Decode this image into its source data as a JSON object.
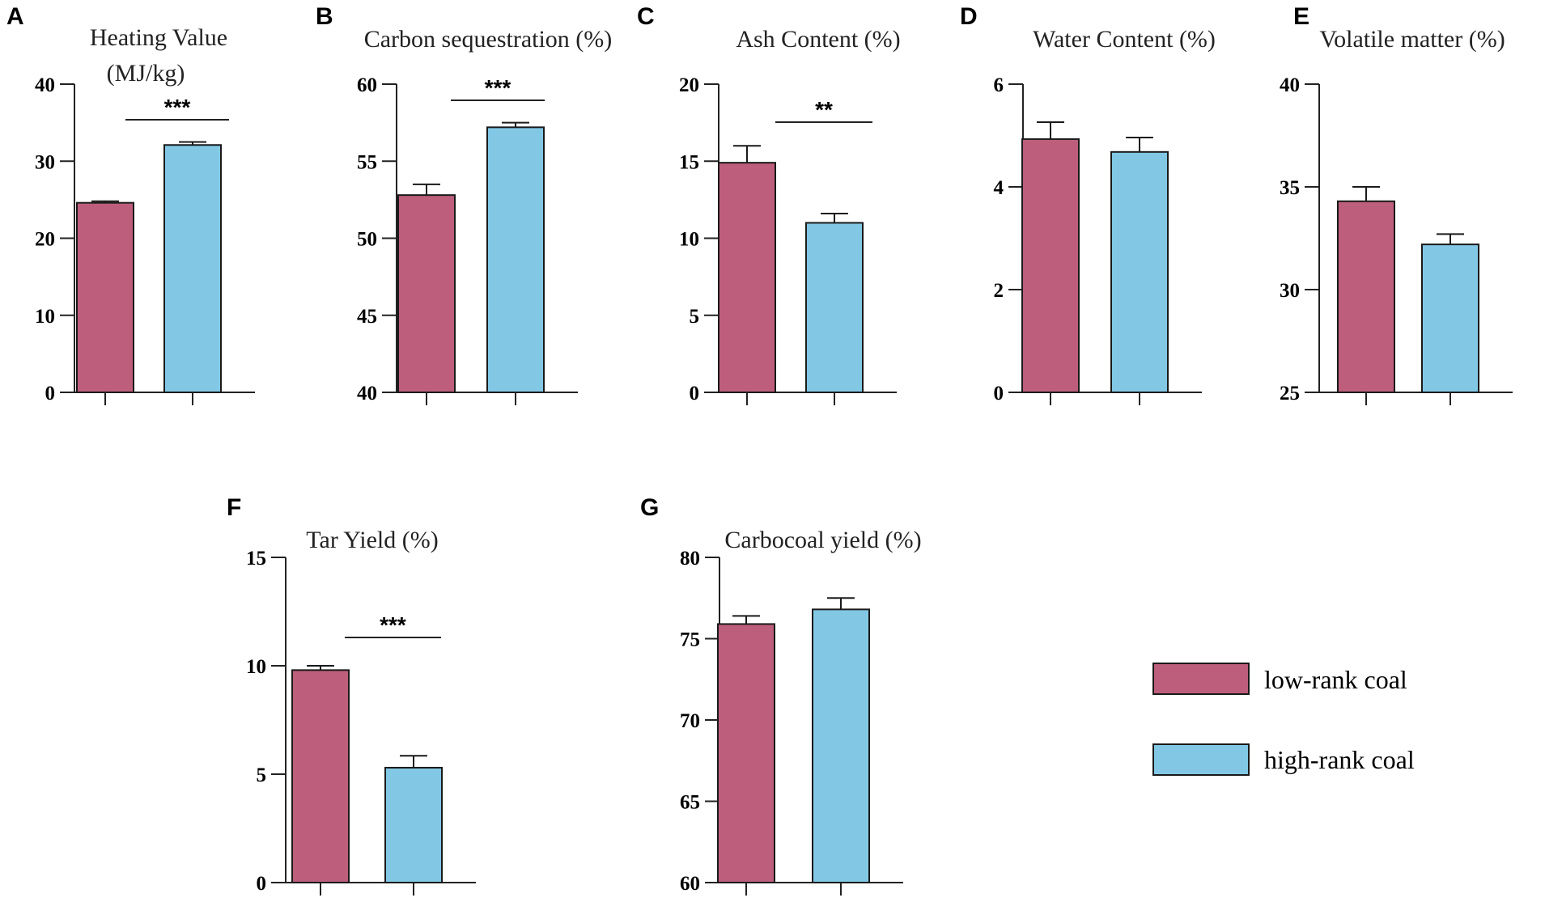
{
  "colors": {
    "low_rank": "#bd5f7c",
    "high_rank": "#82c8e5",
    "axis": "#222222",
    "bar_stroke": "#1a1a1a"
  },
  "legend": [
    {
      "key": "low_rank",
      "label": "low-rank coal"
    },
    {
      "key": "high_rank",
      "label": "high-rank coal"
    }
  ],
  "chart_data": [
    {
      "id": "A",
      "type": "bar",
      "title": "Heating Value",
      "subtitle": "(MJ/kg)",
      "categories": [
        "low-rank coal",
        "high-rank coal"
      ],
      "values": [
        24.6,
        32.1
      ],
      "errors": [
        0.2,
        0.4
      ],
      "ylim": [
        0,
        40
      ],
      "ticks": [
        0,
        10,
        20,
        30,
        40
      ],
      "significance": "***"
    },
    {
      "id": "B",
      "type": "bar",
      "title": "Carbon sequestration (%)",
      "categories": [
        "low-rank coal",
        "high-rank coal"
      ],
      "values": [
        52.8,
        57.2
      ],
      "errors": [
        0.7,
        0.3
      ],
      "ylim": [
        40,
        60
      ],
      "ticks": [
        40,
        45,
        50,
        55,
        60
      ],
      "significance": "***"
    },
    {
      "id": "C",
      "type": "bar",
      "title": "Ash Content (%)",
      "categories": [
        "low-rank coal",
        "high-rank coal"
      ],
      "values": [
        14.9,
        11.0
      ],
      "errors": [
        1.1,
        0.6
      ],
      "ylim": [
        0,
        20
      ],
      "ticks": [
        0,
        5,
        10,
        15,
        20
      ],
      "significance": "**"
    },
    {
      "id": "D",
      "type": "bar",
      "title": "Water Content (%)",
      "categories": [
        "low-rank coal",
        "high-rank coal"
      ],
      "values": [
        4.93,
        4.68
      ],
      "errors": [
        0.33,
        0.28
      ],
      "ylim": [
        0,
        6
      ],
      "ticks": [
        0,
        2,
        4,
        6
      ],
      "significance": ""
    },
    {
      "id": "E",
      "type": "bar",
      "title": "Volatile matter (%)",
      "categories": [
        "low-rank coal",
        "high-rank coal"
      ],
      "values": [
        34.3,
        32.2
      ],
      "errors": [
        0.7,
        0.5
      ],
      "ylim": [
        25,
        40
      ],
      "ticks": [
        25,
        30,
        35,
        40
      ],
      "significance": ""
    },
    {
      "id": "F",
      "type": "bar",
      "title": "Tar Yield (%)",
      "categories": [
        "low-rank coal",
        "high-rank coal"
      ],
      "values": [
        9.8,
        5.3
      ],
      "errors": [
        0.2,
        0.55
      ],
      "ylim": [
        0,
        15
      ],
      "ticks": [
        0,
        5,
        10,
        15
      ],
      "significance": "***"
    },
    {
      "id": "G",
      "type": "bar",
      "title": "Carbocoal yield (%)",
      "categories": [
        "low-rank coal",
        "high-rank coal"
      ],
      "values": [
        75.9,
        76.8
      ],
      "errors": [
        0.5,
        0.7
      ],
      "ylim": [
        60,
        80
      ],
      "ticks": [
        60,
        65,
        70,
        75,
        80
      ],
      "significance": ""
    }
  ]
}
